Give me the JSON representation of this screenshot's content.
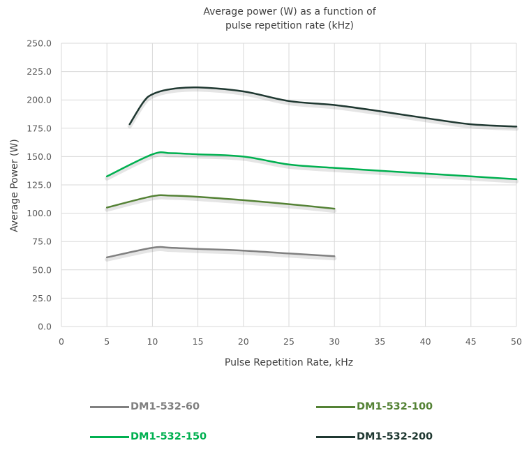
{
  "chart_data": {
    "type": "line",
    "title_line1": "Average power (W) as a function of",
    "title_line2": "pulse repetition rate (kHz)",
    "xlabel": "Pulse Repetition Rate, kHz",
    "ylabel": "Average Power (W)",
    "xlim": [
      0,
      50
    ],
    "ylim": [
      0,
      250
    ],
    "x_ticks": [
      0,
      5,
      10,
      15,
      20,
      25,
      30,
      35,
      40,
      45,
      50
    ],
    "x_tick_labels": [
      "0",
      "5",
      "10",
      "15",
      "20",
      "25",
      "30",
      "35",
      "40",
      "45",
      "50"
    ],
    "y_ticks": [
      0,
      25,
      50,
      75,
      100,
      125,
      150,
      175,
      200,
      225,
      250
    ],
    "y_tick_labels": [
      "0.0",
      "25.0",
      "50.0",
      "75.0",
      "100.0",
      "125.0",
      "150.0",
      "175.0",
      "200.0",
      "225.0",
      "250.0"
    ],
    "grid": true,
    "legend_position": "bottom",
    "series": [
      {
        "name": "DM1-532-60",
        "color": "#808080",
        "x": [
          5,
          10,
          12,
          15,
          20,
          25,
          30
        ],
        "y": [
          61,
          69.5,
          69.5,
          68.5,
          67,
          64.5,
          62
        ]
      },
      {
        "name": "DM1-532-100",
        "color": "#548235",
        "x": [
          5,
          10,
          12,
          15,
          20,
          25,
          30
        ],
        "y": [
          105,
          115,
          115.5,
          114.5,
          111.5,
          108,
          104
        ]
      },
      {
        "name": "DM1-532-150",
        "color": "#00B050",
        "x": [
          5,
          10,
          12,
          15,
          20,
          25,
          30,
          35,
          40,
          45,
          50
        ],
        "y": [
          132.5,
          152,
          153,
          152,
          150,
          143,
          140,
          137.5,
          135,
          132.5,
          130
        ]
      },
      {
        "name": "DM1-532-200",
        "color": "#1F3831",
        "x": [
          7.5,
          9,
          10,
          12,
          15,
          20,
          25,
          30,
          35,
          40,
          45,
          50
        ],
        "y": [
          178.5,
          198,
          205,
          209.5,
          211,
          207.5,
          199,
          195.5,
          190,
          184,
          178.5,
          176.5
        ]
      }
    ]
  }
}
